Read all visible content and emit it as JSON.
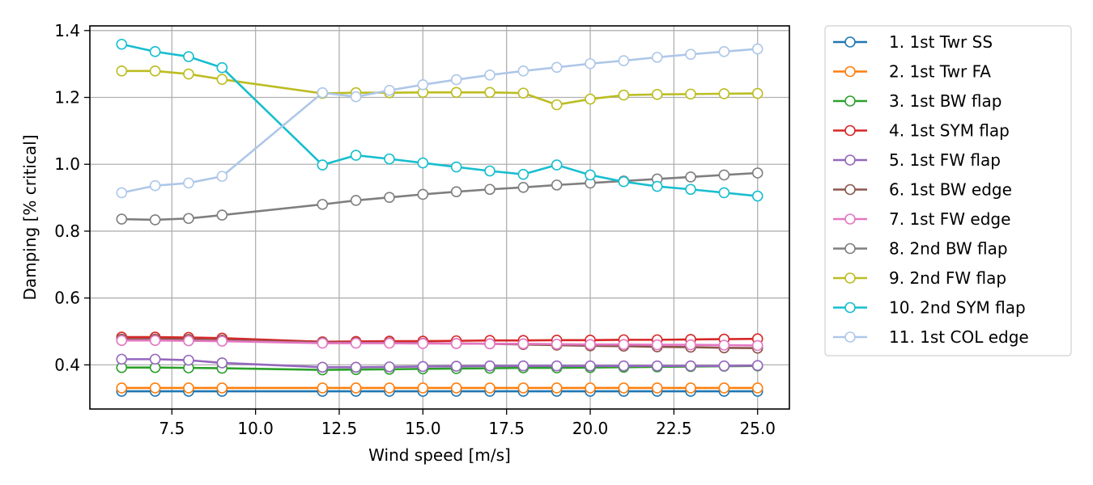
{
  "chart_data": {
    "type": "line",
    "title": "",
    "xlabel": "Wind speed [m/s]",
    "ylabel": "Damping [% critical]",
    "xlim": [
      5.05,
      25.95
    ],
    "ylim": [
      0.268,
      1.414
    ],
    "x_ticks": [
      7.5,
      10.0,
      12.5,
      15.0,
      17.5,
      20.0,
      22.5,
      25.0
    ],
    "x_tick_labels": [
      "7.5",
      "10.0",
      "12.5",
      "15.0",
      "17.5",
      "20.0",
      "22.5",
      "25.0"
    ],
    "y_ticks": [
      0.4,
      0.6,
      0.8,
      1.0,
      1.2,
      1.4
    ],
    "y_tick_labels": [
      "0.4",
      "0.6",
      "0.8",
      "1.0",
      "1.2",
      "1.4"
    ],
    "grid": true,
    "legend": "outside-right",
    "marker": "hollow-circle",
    "x": [
      6,
      7,
      8,
      9,
      12,
      13,
      14,
      15,
      16,
      17,
      18,
      19,
      20,
      21,
      22,
      23,
      24,
      25
    ],
    "series": [
      {
        "name": "1. 1st Twr SS",
        "color": "#1f77b4",
        "values": [
          0.321,
          0.321,
          0.321,
          0.321,
          0.321,
          0.321,
          0.321,
          0.321,
          0.321,
          0.321,
          0.321,
          0.321,
          0.321,
          0.321,
          0.321,
          0.321,
          0.321,
          0.321
        ]
      },
      {
        "name": "2. 1st Twr FA",
        "color": "#ff7f0e",
        "values": [
          0.331,
          0.331,
          0.331,
          0.331,
          0.331,
          0.331,
          0.331,
          0.331,
          0.331,
          0.331,
          0.331,
          0.331,
          0.331,
          0.331,
          0.331,
          0.331,
          0.331,
          0.331
        ]
      },
      {
        "name": "3. 1st BW flap",
        "color": "#2ca02c",
        "values": [
          0.392,
          0.392,
          0.391,
          0.39,
          0.385,
          0.386,
          0.387,
          0.388,
          0.389,
          0.39,
          0.391,
          0.391,
          0.392,
          0.393,
          0.394,
          0.395,
          0.396,
          0.397
        ]
      },
      {
        "name": "4. 1st SYM flap",
        "color": "#d62728",
        "values": [
          0.483,
          0.483,
          0.482,
          0.48,
          0.469,
          0.47,
          0.471,
          0.471,
          0.472,
          0.473,
          0.473,
          0.474,
          0.474,
          0.475,
          0.475,
          0.476,
          0.477,
          0.478
        ]
      },
      {
        "name": "5. 1st FW flap",
        "color": "#9467bd",
        "values": [
          0.417,
          0.417,
          0.414,
          0.406,
          0.393,
          0.393,
          0.394,
          0.395,
          0.396,
          0.397,
          0.397,
          0.397,
          0.397,
          0.397,
          0.397,
          0.397,
          0.397,
          0.398
        ]
      },
      {
        "name": "6. 1st BW edge",
        "color": "#8c564b",
        "values": [
          0.477,
          0.477,
          0.476,
          0.474,
          0.467,
          0.466,
          0.466,
          0.465,
          0.464,
          0.463,
          0.461,
          0.459,
          0.457,
          0.456,
          0.454,
          0.453,
          0.451,
          0.45
        ]
      },
      {
        "name": "7. 1st FW edge",
        "color": "#e377c2",
        "values": [
          0.473,
          0.473,
          0.472,
          0.471,
          0.465,
          0.465,
          0.465,
          0.464,
          0.464,
          0.463,
          0.463,
          0.462,
          0.461,
          0.461,
          0.46,
          0.46,
          0.459,
          0.458
        ]
      },
      {
        "name": "8. 2nd BW flap",
        "color": "#7f7f7f",
        "values": [
          0.836,
          0.834,
          0.838,
          0.848,
          0.88,
          0.892,
          0.901,
          0.91,
          0.918,
          0.925,
          0.931,
          0.938,
          0.944,
          0.95,
          0.956,
          0.962,
          0.968,
          0.974
        ]
      },
      {
        "name": "9. 2nd FW flap",
        "color": "#bcbd22",
        "values": [
          1.279,
          1.279,
          1.27,
          1.254,
          1.212,
          1.214,
          1.214,
          1.215,
          1.215,
          1.215,
          1.213,
          1.178,
          1.195,
          1.207,
          1.209,
          1.21,
          1.211,
          1.212
        ]
      },
      {
        "name": "10. 2nd SYM flap",
        "color": "#17becf",
        "values": [
          1.359,
          1.337,
          1.322,
          1.289,
          0.998,
          1.027,
          1.016,
          1.004,
          0.992,
          0.98,
          0.97,
          0.998,
          0.968,
          0.948,
          0.934,
          0.925,
          0.915,
          0.905
        ]
      },
      {
        "name": "11. 1st COL edge",
        "color": "#aec7e8",
        "values": [
          0.915,
          0.936,
          0.944,
          0.964,
          1.214,
          1.202,
          1.221,
          1.238,
          1.253,
          1.267,
          1.279,
          1.29,
          1.301,
          1.31,
          1.32,
          1.329,
          1.337,
          1.345
        ]
      }
    ]
  }
}
